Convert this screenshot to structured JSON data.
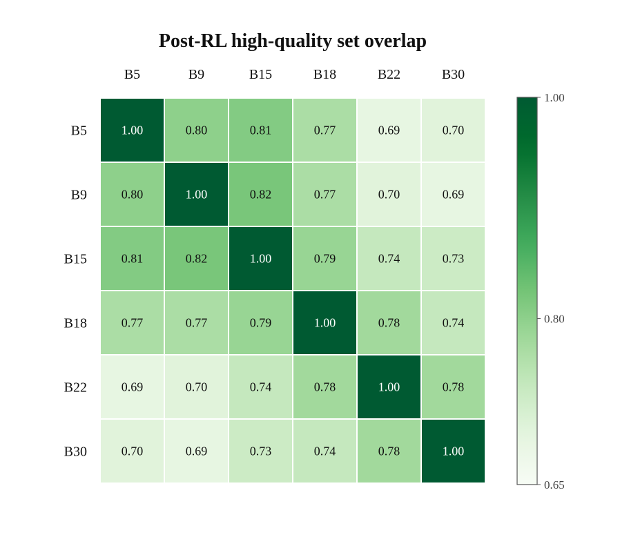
{
  "chart_data": {
    "type": "heatmap",
    "title": "Post-RL high-quality set overlap",
    "x_categories": [
      "B5",
      "B9",
      "B15",
      "B18",
      "B22",
      "B30"
    ],
    "y_categories": [
      "B5",
      "B9",
      "B15",
      "B18",
      "B22",
      "B30"
    ],
    "values": [
      [
        1.0,
        0.8,
        0.81,
        0.77,
        0.69,
        0.7
      ],
      [
        0.8,
        1.0,
        0.82,
        0.77,
        0.7,
        0.69
      ],
      [
        0.81,
        0.82,
        1.0,
        0.79,
        0.74,
        0.73
      ],
      [
        0.77,
        0.77,
        0.79,
        1.0,
        0.78,
        0.74
      ],
      [
        0.69,
        0.7,
        0.74,
        0.78,
        1.0,
        0.78
      ],
      [
        0.7,
        0.69,
        0.73,
        0.74,
        0.78,
        1.0
      ]
    ],
    "value_format": "0.00",
    "colormap": "Greens",
    "vmin": 0.65,
    "vmax": 1.0,
    "x_axis_position": "top",
    "colorbar": {
      "position": "right",
      "ticks": [
        1.0,
        0.8,
        0.65
      ],
      "tick_labels": [
        "1.00",
        "0.80",
        "0.65"
      ]
    },
    "colors": {
      "low": "#f7fcf5",
      "mid": "#74c476",
      "high": "#005a32",
      "cell_border": "#ffffff",
      "text_dark": "#111111",
      "text_light": "#ffffff"
    }
  }
}
